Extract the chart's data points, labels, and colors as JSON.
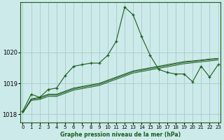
{
  "title": "Graphe pression niveau de la mer (hPa)",
  "bg_color": "#cdeaea",
  "grid_color": "#aacfcf",
  "line_color": "#1a5c1a",
  "ylim": [
    1017.75,
    1021.6
  ],
  "yticks": [
    1018,
    1019,
    1020
  ],
  "xlim": [
    -0.3,
    23.3
  ],
  "x_labels": [
    "0",
    "1",
    "2",
    "3",
    "4",
    "5",
    "6",
    "7",
    "8",
    "9",
    "10",
    "11",
    "12",
    "13",
    "14",
    "15",
    "16",
    "17",
    "18",
    "19",
    "20",
    "21",
    "22",
    "23"
  ],
  "main_line": [
    1018.1,
    1018.65,
    1018.55,
    1018.8,
    1018.85,
    1019.25,
    1019.55,
    1019.6,
    1019.65,
    1019.65,
    1019.9,
    1020.35,
    1021.45,
    1021.2,
    1020.5,
    1019.9,
    1019.45,
    1019.35,
    1019.3,
    1019.3,
    1019.05,
    1019.55,
    1019.2,
    1019.6
  ],
  "flat1": [
    1018.05,
    1018.5,
    1018.55,
    1018.65,
    1018.65,
    1018.75,
    1018.85,
    1018.9,
    1018.95,
    1019.0,
    1019.1,
    1019.2,
    1019.3,
    1019.4,
    1019.45,
    1019.5,
    1019.55,
    1019.6,
    1019.65,
    1019.7,
    1019.72,
    1019.75,
    1019.78,
    1019.8
  ],
  "flat2": [
    1018.05,
    1018.48,
    1018.52,
    1018.62,
    1018.62,
    1018.72,
    1018.82,
    1018.87,
    1018.92,
    1018.97,
    1019.07,
    1019.17,
    1019.27,
    1019.37,
    1019.42,
    1019.47,
    1019.52,
    1019.57,
    1019.62,
    1019.67,
    1019.7,
    1019.73,
    1019.76,
    1019.79
  ],
  "flat3": [
    1018.05,
    1018.45,
    1018.48,
    1018.58,
    1018.58,
    1018.68,
    1018.78,
    1018.83,
    1018.88,
    1018.93,
    1019.03,
    1019.13,
    1019.23,
    1019.33,
    1019.38,
    1019.43,
    1019.48,
    1019.53,
    1019.58,
    1019.63,
    1019.66,
    1019.69,
    1019.72,
    1019.75
  ]
}
